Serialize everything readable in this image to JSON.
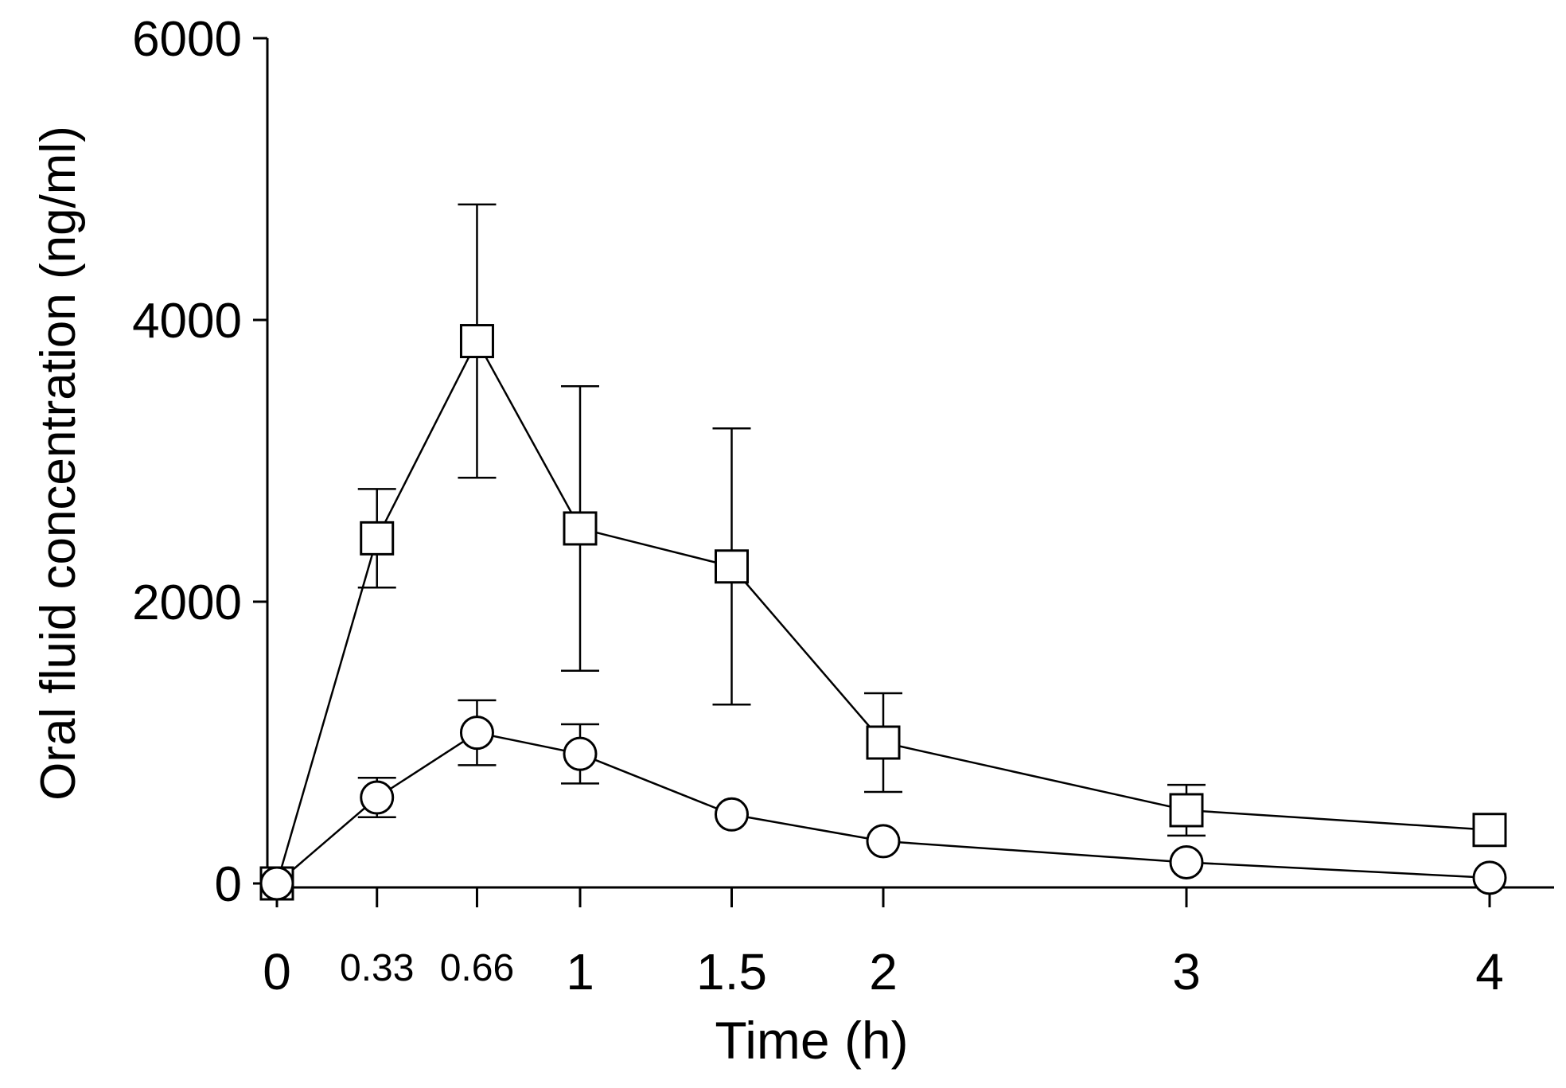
{
  "chart_data": {
    "type": "line",
    "title": "",
    "xlabel": "Time (h)",
    "ylabel": "Oral fluid concentration (ng/ml)",
    "xlim": [
      0,
      4
    ],
    "ylim": [
      0,
      6000
    ],
    "x_ticks": [
      0,
      0.33,
      0.66,
      1,
      1.5,
      2,
      3,
      4
    ],
    "x_tick_labels": [
      "0",
      "0.33",
      "0.66",
      "1",
      "1.5",
      "2",
      "3",
      "4"
    ],
    "y_ticks": [
      0,
      2000,
      4000,
      6000
    ],
    "y_tick_labels": [
      "0",
      "2000",
      "4000",
      "6000"
    ],
    "grid": false,
    "legend": "none",
    "series": [
      {
        "name": "square",
        "marker": "square",
        "x": [
          0,
          0.33,
          0.66,
          1,
          1.5,
          2,
          3,
          4
        ],
        "values": [
          0,
          2450,
          3850,
          2520,
          2250,
          1000,
          520,
          380
        ],
        "error": [
          0,
          350,
          970,
          1010,
          980,
          350,
          180,
          0
        ]
      },
      {
        "name": "circle",
        "marker": "circle",
        "x": [
          0,
          0.33,
          0.66,
          1,
          1.5,
          2,
          3,
          4
        ],
        "values": [
          0,
          610,
          1070,
          920,
          490,
          300,
          150,
          40
        ],
        "error": [
          0,
          140,
          230,
          210,
          0,
          0,
          0,
          0
        ]
      }
    ]
  }
}
